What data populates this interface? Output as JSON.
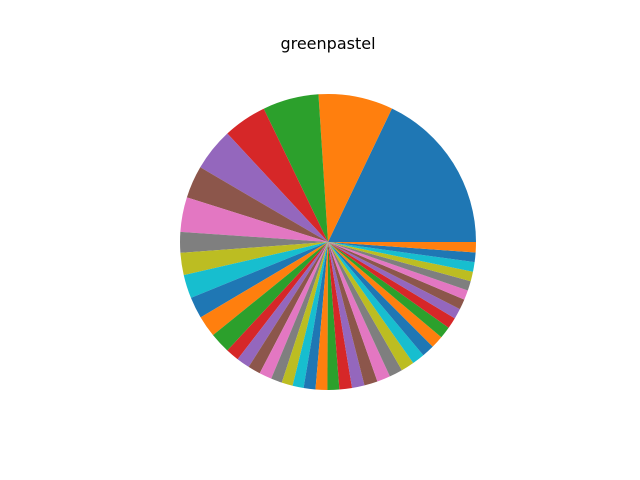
{
  "chart_data": {
    "type": "pie",
    "title": "greenpastel",
    "start_angle_deg": 0,
    "direction": "counterclockwise",
    "colors": [
      "#1f77b4",
      "#ff7f0e",
      "#2ca02c",
      "#d62728",
      "#9467bd",
      "#8c564b",
      "#e377c2",
      "#7f7f7f",
      "#bcbd22",
      "#17becf"
    ],
    "values": [
      22.2,
      10.1,
      7.6,
      5.9,
      5.8,
      4.4,
      4.7,
      2.8,
      3.0,
      3.2,
      2.9,
      2.9,
      2.8,
      1.8,
      1.8,
      1.7,
      1.7,
      1.5,
      1.5,
      1.5,
      1.6,
      1.6,
      1.6,
      1.7,
      1.7,
      1.8,
      1.8,
      1.8,
      1.8,
      1.7,
      1.7,
      1.7,
      1.6,
      1.5,
      1.4,
      1.4,
      1.3,
      1.3,
      1.3,
      1.3,
      1.3,
      1.4
    ]
  }
}
